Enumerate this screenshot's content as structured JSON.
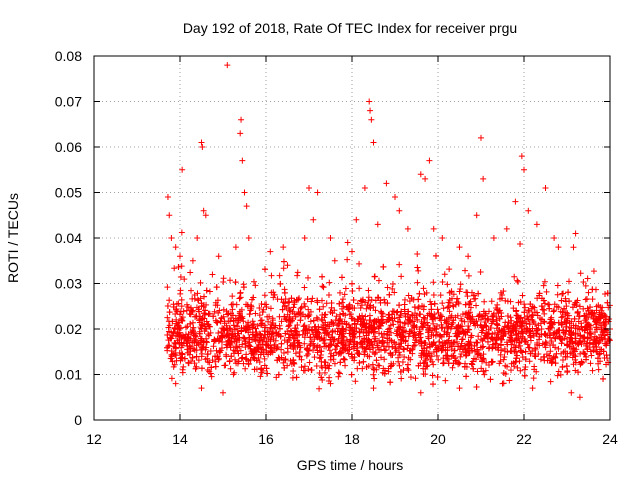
{
  "chart_data": {
    "type": "scatter",
    "title": "Day 192 of 2018, Rate Of TEC Index for receiver prgu",
    "xlabel": "GPS time / hours",
    "ylabel": "ROTI / TECUs",
    "xlim": [
      12,
      24
    ],
    "ylim": [
      0,
      0.08
    ],
    "xticks": [
      12,
      14,
      16,
      18,
      20,
      22,
      24
    ],
    "xtick_labels": [
      "12",
      "14",
      "16",
      "18",
      "20",
      "22",
      "24"
    ],
    "yticks": [
      0,
      0.01,
      0.02,
      0.03,
      0.04,
      0.05,
      0.06,
      0.07,
      0.08
    ],
    "ytick_labels": [
      "0",
      "0.01",
      "0.02",
      "0.03",
      "0.04",
      "0.05",
      "0.06",
      "0.07",
      "0.08"
    ],
    "grid": true,
    "marker": "+",
    "color": "#ff0000",
    "series": [
      {
        "name": "prgu",
        "description": "dense band of ROTI values mostly between 0.005 and 0.03 TECU/min from ~13.7 to 24 h",
        "x_range": [
          13.7,
          24.0
        ],
        "y_band": [
          0.006,
          0.03
        ],
        "points": [
          [
            13.72,
            0.049
          ],
          [
            13.75,
            0.045
          ],
          [
            13.8,
            0.04
          ],
          [
            13.9,
            0.038
          ],
          [
            14.0,
            0.036
          ],
          [
            14.05,
            0.055
          ],
          [
            14.3,
            0.035
          ],
          [
            14.4,
            0.04
          ],
          [
            14.5,
            0.061
          ],
          [
            14.52,
            0.06
          ],
          [
            14.55,
            0.046
          ],
          [
            14.6,
            0.045
          ],
          [
            14.9,
            0.036
          ],
          [
            15.1,
            0.078
          ],
          [
            15.3,
            0.038
          ],
          [
            15.42,
            0.066
          ],
          [
            15.4,
            0.063
          ],
          [
            15.45,
            0.057
          ],
          [
            15.5,
            0.05
          ],
          [
            15.55,
            0.047
          ],
          [
            15.6,
            0.04
          ],
          [
            16.1,
            0.037
          ],
          [
            16.4,
            0.038
          ],
          [
            16.5,
            0.034
          ],
          [
            16.9,
            0.04
          ],
          [
            17.0,
            0.051
          ],
          [
            17.1,
            0.044
          ],
          [
            17.2,
            0.05
          ],
          [
            17.5,
            0.04
          ],
          [
            17.6,
            0.035
          ],
          [
            17.9,
            0.039
          ],
          [
            18.0,
            0.037
          ],
          [
            18.1,
            0.044
          ],
          [
            18.3,
            0.051
          ],
          [
            18.4,
            0.07
          ],
          [
            18.42,
            0.068
          ],
          [
            18.45,
            0.066
          ],
          [
            18.5,
            0.061
          ],
          [
            18.6,
            0.043
          ],
          [
            18.8,
            0.052
          ],
          [
            19.0,
            0.049
          ],
          [
            19.1,
            0.046
          ],
          [
            19.3,
            0.042
          ],
          [
            19.6,
            0.054
          ],
          [
            19.7,
            0.053
          ],
          [
            19.8,
            0.057
          ],
          [
            19.9,
            0.042
          ],
          [
            20.1,
            0.04
          ],
          [
            20.5,
            0.038
          ],
          [
            20.7,
            0.036
          ],
          [
            20.9,
            0.045
          ],
          [
            21.0,
            0.062
          ],
          [
            21.05,
            0.053
          ],
          [
            21.3,
            0.04
          ],
          [
            21.6,
            0.042
          ],
          [
            21.8,
            0.048
          ],
          [
            21.95,
            0.058
          ],
          [
            22.0,
            0.055
          ],
          [
            22.1,
            0.046
          ],
          [
            22.3,
            0.043
          ],
          [
            22.5,
            0.051
          ],
          [
            22.7,
            0.04
          ],
          [
            22.8,
            0.038
          ],
          [
            23.2,
            0.041
          ],
          [
            23.5,
            0.028
          ],
          [
            23.8,
            0.024
          ],
          [
            24.0,
            0.02
          ],
          [
            23.3,
            0.005
          ],
          [
            23.1,
            0.006
          ],
          [
            22.2,
            0.007
          ],
          [
            19.6,
            0.006
          ],
          [
            18.5,
            0.007
          ],
          [
            17.5,
            0.008
          ],
          [
            15.0,
            0.006
          ],
          [
            14.5,
            0.007
          ],
          [
            13.9,
            0.008
          ],
          [
            20.5,
            0.007
          ],
          [
            21.5,
            0.008
          ]
        ]
      }
    ]
  }
}
